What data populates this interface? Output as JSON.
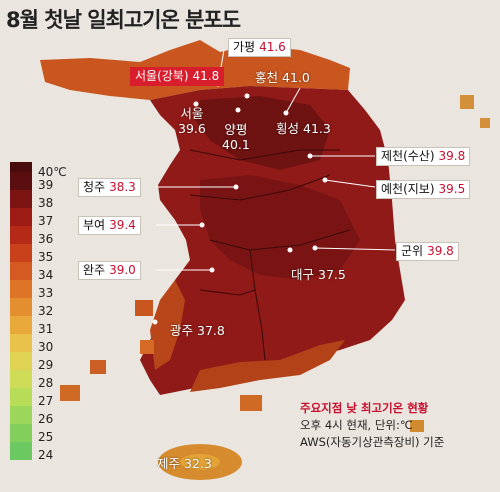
{
  "title": "8월 첫날 일최고기온 분포도",
  "legend": {
    "unit_label": "40℃",
    "ticks": [
      "39",
      "38",
      "37",
      "36",
      "35",
      "34",
      "33",
      "32",
      "31",
      "30",
      "29",
      "28",
      "27",
      "26",
      "25",
      "24"
    ],
    "colors": [
      "#5a0e0f",
      "#7d1414",
      "#9c1c15",
      "#b52a16",
      "#c8411a",
      "#d55a21",
      "#dd7428",
      "#e38f30",
      "#e8a93a",
      "#e8c24a",
      "#e0d253",
      "#cfdc57",
      "#b6dc58",
      "#9cd65a",
      "#82cf5c",
      "#6cc860"
    ]
  },
  "stations": [
    {
      "name": "가평",
      "value": "41.6",
      "style": "box"
    },
    {
      "name": "서울(강북)",
      "value": "41.8",
      "style": "highlight"
    },
    {
      "name": "홍천",
      "value": "41.0",
      "style": "text"
    },
    {
      "name": "서울",
      "value": "39.6",
      "style": "text"
    },
    {
      "name": "양평",
      "value": "40.1",
      "style": "text"
    },
    {
      "name": "횡성",
      "value": "41.3",
      "style": "text"
    },
    {
      "name": "제천(수산)",
      "value": "39.8",
      "style": "box"
    },
    {
      "name": "청주",
      "value": "38.3",
      "style": "box"
    },
    {
      "name": "예천(지보)",
      "value": "39.5",
      "style": "box"
    },
    {
      "name": "부여",
      "value": "39.4",
      "style": "box"
    },
    {
      "name": "군위",
      "value": "39.8",
      "style": "box"
    },
    {
      "name": "완주",
      "value": "39.0",
      "style": "box"
    },
    {
      "name": "대구",
      "value": "37.5",
      "style": "text"
    },
    {
      "name": "광주",
      "value": "37.8",
      "style": "text"
    },
    {
      "name": "제주",
      "value": "32.3",
      "style": "text"
    }
  ],
  "note": {
    "heading": "주요지점 낮 최고기온 현황",
    "line1": "오후 4시 현재, 단위:℃",
    "line2": "AWS(자동기상관측장비) 기준"
  }
}
